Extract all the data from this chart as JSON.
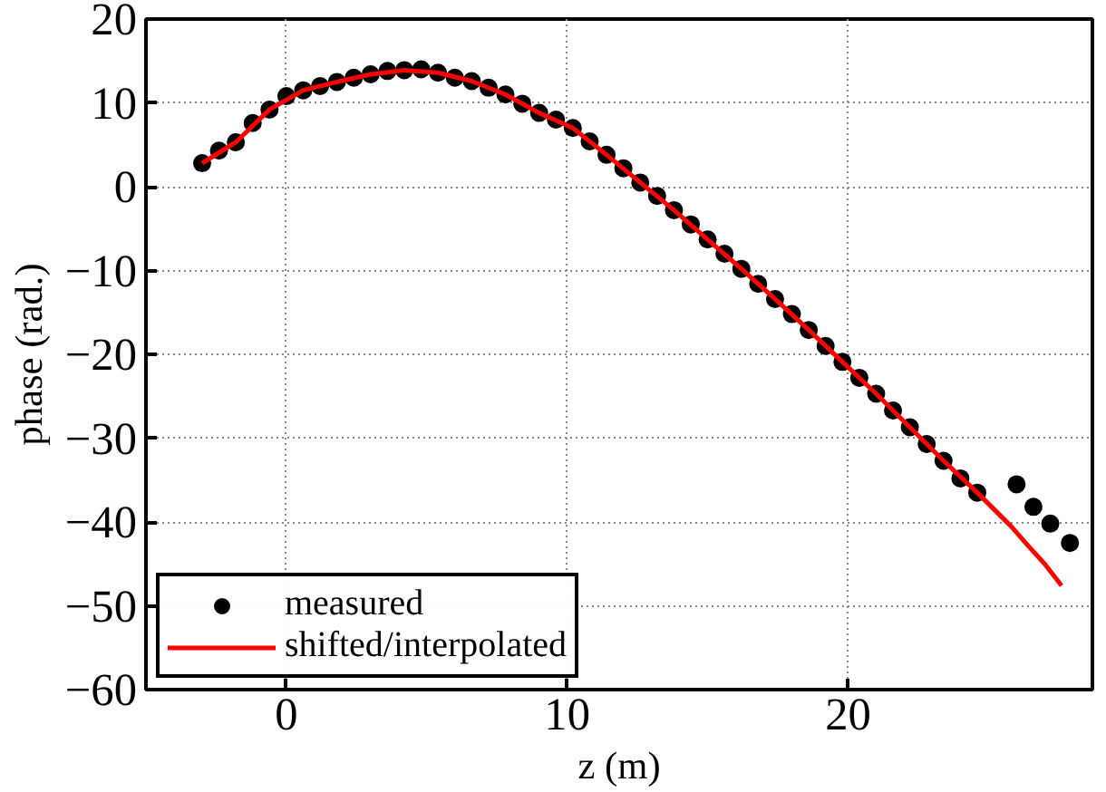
{
  "chart_data": {
    "type": "scatter",
    "xlabel": "z (m)",
    "ylabel": "phase (rad.)",
    "xlim": [
      -5,
      28.7
    ],
    "ylim": [
      -60,
      20
    ],
    "xticks": [
      0,
      10,
      20
    ],
    "yticks": [
      -60,
      -50,
      -40,
      -30,
      -20,
      -10,
      0,
      10,
      20
    ],
    "grid": true,
    "legend": "bottom left",
    "series": [
      {
        "name": "measured",
        "marker": "circle",
        "color": "#000000",
        "x": [
          -3,
          -2.4,
          -1.8,
          -1.2,
          -0.6,
          0,
          0.6,
          1.2,
          1.8,
          2.4,
          3.0,
          3.6,
          4.2,
          4.8,
          5.4,
          6.0,
          6.6,
          7.2,
          7.8,
          8.4,
          9.0,
          9.6,
          10.2,
          10.8,
          11.4,
          12.0,
          12.6,
          13.2,
          13.8,
          14.4,
          15.0,
          15.6,
          16.2,
          16.8,
          17.4,
          18.0,
          18.6,
          19.2,
          19.8,
          20.4,
          21.0,
          21.6,
          22.2,
          22.8,
          23.4,
          24.0,
          24.6,
          26.0,
          26.6,
          27.2,
          27.9
        ],
        "values": [
          2.8,
          4.3,
          5.3,
          7.6,
          9.2,
          10.8,
          11.5,
          12.0,
          12.5,
          13.0,
          13.4,
          13.8,
          13.9,
          14.0,
          13.6,
          13.0,
          12.6,
          11.8,
          11.0,
          9.9,
          8.8,
          8.0,
          7.0,
          5.4,
          3.8,
          2.2,
          0.5,
          -1.1,
          -2.8,
          -4.5,
          -6.3,
          -8.0,
          -9.8,
          -11.6,
          -13.4,
          -15.2,
          -17.1,
          -19.0,
          -20.9,
          -22.8,
          -24.7,
          -26.7,
          -28.7,
          -30.7,
          -32.7,
          -34.8,
          -36.5,
          -35.5,
          -38.2,
          -40.2,
          -42.5
        ]
      },
      {
        "name": "shifted/interpolated",
        "type": "line",
        "line_style": "solid",
        "color": "#ff0000",
        "x": [
          -3,
          -1.8,
          -0.6,
          0.6,
          1.8,
          3.0,
          4.2,
          5.4,
          6.6,
          7.8,
          9.0,
          10.2,
          11.4,
          12.6,
          13.8,
          15.0,
          16.2,
          17.4,
          18.6,
          19.8,
          21.0,
          22.2,
          23.4,
          24.6,
          25.2,
          25.8,
          26.4,
          27.0,
          27.6
        ],
        "values": [
          2.8,
          5.3,
          9.2,
          11.5,
          12.5,
          13.4,
          13.9,
          13.6,
          12.6,
          11.0,
          8.8,
          7.0,
          3.8,
          0.5,
          -2.8,
          -6.3,
          -9.8,
          -13.4,
          -17.1,
          -20.9,
          -24.7,
          -28.7,
          -32.7,
          -36.5,
          -38.5,
          -40.5,
          -42.8,
          -45.0,
          -47.6
        ]
      }
    ]
  }
}
